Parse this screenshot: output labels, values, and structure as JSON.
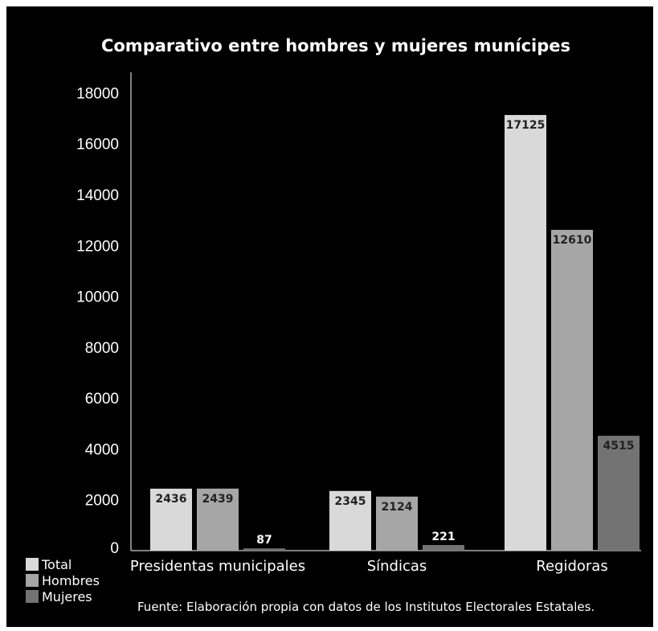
{
  "chart_data": {
    "type": "bar",
    "title": "Comparativo entre hombres y mujeres munícipes",
    "source": "Fuente: Elaboración propia con datos de los Institutos Electorales Estatales.",
    "categories": [
      "Presidentas municipales",
      "Síndicas",
      "Regidoras"
    ],
    "series": [
      {
        "name": "Total",
        "color": "#d9d9d9",
        "values": [
          2436,
          2345,
          17125
        ]
      },
      {
        "name": "Hombres",
        "color": "#a6a6a6",
        "values": [
          2439,
          2124,
          12610
        ]
      },
      {
        "name": "Mujeres",
        "color": "#737373",
        "values": [
          87,
          221,
          4515
        ]
      }
    ],
    "yticks": [
      "0",
      "2000",
      "4000",
      "6000",
      "8000",
      "10000",
      "12000",
      "14000",
      "16000",
      "18000"
    ],
    "ylim": [
      0,
      18000
    ],
    "grid": false,
    "legend_position": "bottom-left"
  }
}
